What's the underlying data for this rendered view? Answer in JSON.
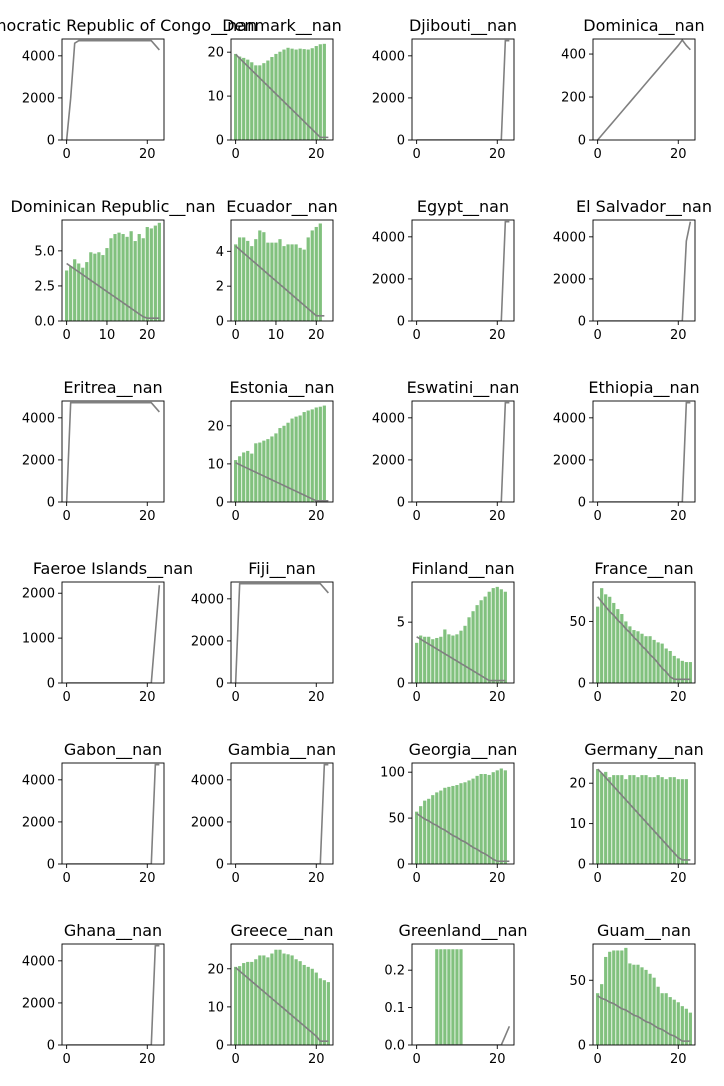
{
  "chart_data": [
    {
      "type": "bar+line",
      "title": "Democratic Republic of Congo__nan",
      "ylim": [
        0,
        4800
      ],
      "yticks": [
        0,
        2000,
        4000
      ],
      "xticks": [
        0,
        20
      ],
      "bars": [],
      "line": [
        0,
        1980,
        4600,
        4720,
        4720,
        4720,
        4720,
        4720,
        4720,
        4720,
        4720,
        4720,
        4720,
        4720,
        4720,
        4720,
        4720,
        4720,
        4720,
        4720,
        4720,
        4720,
        4500,
        4280
      ]
    },
    {
      "type": "bar+line",
      "title": "Denmark__nan",
      "ylim": [
        0,
        23
      ],
      "yticks": [
        0,
        10,
        20
      ],
      "xticks": [
        0,
        20
      ],
      "bars": [
        19.6,
        19.0,
        18.7,
        18.3,
        17.7,
        17.0,
        17.0,
        17.5,
        18.1,
        18.9,
        19.6,
        20.1,
        20.6,
        21.0,
        20.8,
        20.6,
        20.8,
        20.7,
        20.6,
        20.9,
        21.4,
        21.8,
        21.9
      ],
      "line": [
        19.5,
        18.6,
        17.7,
        16.8,
        15.9,
        15.0,
        14.1,
        13.2,
        12.3,
        11.4,
        10.5,
        9.6,
        8.7,
        7.8,
        6.9,
        6.0,
        5.1,
        4.2,
        3.3,
        2.4,
        1.5,
        0.6,
        0.6,
        0.6
      ]
    },
    {
      "type": "bar+line",
      "title": "Djibouti__nan",
      "ylim": [
        0,
        4800
      ],
      "yticks": [
        0,
        2000,
        4000
      ],
      "xticks": [
        0,
        20
      ],
      "bars": [],
      "line": [
        0,
        0,
        0,
        0,
        0,
        0,
        0,
        0,
        0,
        0,
        0,
        0,
        0,
        0,
        0,
        0,
        0,
        0,
        0,
        0,
        0,
        0,
        4720,
        4720
      ]
    },
    {
      "type": "bar+line",
      "title": "Dominica__nan",
      "ylim": [
        0,
        470
      ],
      "yticks": [
        0,
        200,
        400
      ],
      "xticks": [
        0,
        20
      ],
      "bars": [],
      "line": [
        0,
        22,
        44,
        66,
        88,
        110,
        132,
        154,
        176,
        198,
        220,
        242,
        264,
        286,
        308,
        330,
        352,
        374,
        396,
        418,
        440,
        465,
        440,
        420
      ]
    },
    {
      "type": "bar+line",
      "title": "Dominican Republic__nan",
      "ylim": [
        0,
        7.2
      ],
      "yticks": [
        0,
        2.5,
        5.0
      ],
      "ytick_labels": [
        "0.0",
        "2.5",
        "5.0"
      ],
      "xticks": [
        0,
        10,
        20
      ],
      "bars": [
        3.6,
        3.9,
        4.4,
        4.1,
        3.8,
        4.2,
        4.9,
        4.8,
        4.9,
        4.7,
        5.2,
        5.9,
        6.2,
        6.3,
        6.2,
        6.0,
        6.4,
        5.7,
        6.2,
        5.9,
        6.7,
        6.6,
        6.8,
        7.0
      ],
      "line": [
        4.1,
        3.9,
        3.7,
        3.5,
        3.3,
        3.1,
        2.9,
        2.7,
        2.5,
        2.3,
        2.1,
        1.9,
        1.7,
        1.5,
        1.3,
        1.1,
        0.9,
        0.7,
        0.5,
        0.3,
        0.2,
        0.2,
        0.2,
        0.2
      ]
    },
    {
      "type": "bar+line",
      "title": "Ecuador__nan",
      "ylim": [
        0,
        5.8
      ],
      "yticks": [
        0,
        2,
        4
      ],
      "xticks": [
        0,
        10,
        20
      ],
      "bars": [
        4.4,
        4.8,
        4.8,
        4.6,
        4.3,
        4.7,
        5.2,
        5.1,
        4.5,
        4.5,
        4.5,
        4.7,
        4.3,
        4.4,
        4.4,
        4.4,
        4.2,
        4.1,
        4.8,
        5.2,
        5.4,
        5.6
      ],
      "line": [
        4.3,
        4.1,
        3.9,
        3.7,
        3.5,
        3.3,
        3.1,
        2.9,
        2.7,
        2.5,
        2.3,
        2.1,
        1.9,
        1.7,
        1.5,
        1.3,
        1.1,
        0.9,
        0.7,
        0.5,
        0.3,
        0.3,
        0.3
      ]
    },
    {
      "type": "bar+line",
      "title": "Egypt__nan",
      "ylim": [
        0,
        4800
      ],
      "yticks": [
        0,
        2000,
        4000
      ],
      "xticks": [
        0,
        20
      ],
      "bars": [],
      "line": [
        0,
        0,
        0,
        0,
        0,
        0,
        0,
        0,
        0,
        0,
        0,
        0,
        0,
        0,
        0,
        0,
        0,
        0,
        0,
        0,
        0,
        0,
        4720,
        4720
      ]
    },
    {
      "type": "bar+line",
      "title": "El Salvador__nan",
      "ylim": [
        0,
        4800
      ],
      "yticks": [
        0,
        2000,
        4000
      ],
      "xticks": [
        0,
        20
      ],
      "bars": [],
      "line": [
        0,
        0,
        0,
        0,
        0,
        0,
        0,
        0,
        0,
        0,
        0,
        0,
        0,
        0,
        0,
        0,
        0,
        0,
        0,
        0,
        0,
        0,
        3800,
        4720
      ]
    },
    {
      "type": "bar+line",
      "title": "Eritrea__nan",
      "ylim": [
        0,
        4800
      ],
      "yticks": [
        0,
        2000,
        4000
      ],
      "xticks": [
        0,
        20
      ],
      "bars": [],
      "line": [
        0,
        4720,
        4720,
        4720,
        4720,
        4720,
        4720,
        4720,
        4720,
        4720,
        4720,
        4720,
        4720,
        4720,
        4720,
        4720,
        4720,
        4720,
        4720,
        4720,
        4720,
        4720,
        4500,
        4280
      ]
    },
    {
      "type": "bar+line",
      "title": "Estonia__nan",
      "ylim": [
        0,
        26.5
      ],
      "yticks": [
        0,
        10,
        20
      ],
      "xticks": [
        0,
        20
      ],
      "bars": [
        11.0,
        12.0,
        13.0,
        13.4,
        12.7,
        15.4,
        15.6,
        16.1,
        16.5,
        17.2,
        18.0,
        19.4,
        20.0,
        20.8,
        21.9,
        22.4,
        22.7,
        23.6,
        24.0,
        24.3,
        24.8,
        25.0,
        25.3
      ],
      "line": [
        10.3,
        9.8,
        9.3,
        8.8,
        8.3,
        7.8,
        7.3,
        6.8,
        6.3,
        5.8,
        5.3,
        4.8,
        4.3,
        3.8,
        3.3,
        2.8,
        2.3,
        1.8,
        1.3,
        0.8,
        0.3,
        0.3,
        0.3,
        0.3
      ]
    },
    {
      "type": "bar+line",
      "title": "Eswatini__nan",
      "ylim": [
        0,
        4800
      ],
      "yticks": [
        0,
        2000,
        4000
      ],
      "xticks": [
        0,
        20
      ],
      "bars": [],
      "line": [
        0,
        0,
        0,
        0,
        0,
        0,
        0,
        0,
        0,
        0,
        0,
        0,
        0,
        0,
        0,
        0,
        0,
        0,
        0,
        0,
        0,
        0,
        4720,
        4720
      ]
    },
    {
      "type": "bar+line",
      "title": "Ethiopia__nan",
      "ylim": [
        0,
        4800
      ],
      "yticks": [
        0,
        2000,
        4000
      ],
      "xticks": [
        0,
        20
      ],
      "bars": [],
      "line": [
        0,
        0,
        0,
        0,
        0,
        0,
        0,
        0,
        0,
        0,
        0,
        0,
        0,
        0,
        0,
        0,
        0,
        0,
        0,
        0,
        0,
        0,
        4720,
        4720
      ]
    },
    {
      "type": "bar+line",
      "title": "Faeroe Islands__nan",
      "ylim": [
        0,
        2250
      ],
      "yticks": [
        0,
        1000,
        2000
      ],
      "xticks": [
        0,
        20
      ],
      "bars": [],
      "line": [
        0,
        0,
        0,
        0,
        0,
        0,
        0,
        0,
        0,
        0,
        0,
        0,
        0,
        0,
        0,
        0,
        0,
        0,
        0,
        0,
        0,
        0,
        1100,
        2180
      ]
    },
    {
      "type": "bar+line",
      "title": "Fiji__nan",
      "ylim": [
        0,
        4800
      ],
      "yticks": [
        0,
        2000,
        4000
      ],
      "xticks": [
        0,
        20
      ],
      "bars": [],
      "line": [
        0,
        4720,
        4720,
        4720,
        4720,
        4720,
        4720,
        4720,
        4720,
        4720,
        4720,
        4720,
        4720,
        4720,
        4720,
        4720,
        4720,
        4720,
        4720,
        4720,
        4720,
        4720,
        4500,
        4280
      ]
    },
    {
      "type": "bar+line",
      "title": "Finland__nan",
      "ylim": [
        0,
        8.3
      ],
      "yticks": [
        0,
        5
      ],
      "xticks": [
        0,
        20
      ],
      "bars": [
        3.3,
        3.9,
        3.8,
        3.8,
        3.6,
        3.7,
        3.8,
        4.4,
        4.0,
        3.9,
        4.0,
        4.3,
        4.7,
        5.4,
        5.9,
        6.4,
        6.8,
        7.1,
        7.5,
        7.8,
        7.9,
        7.7,
        7.5
      ],
      "line": [
        3.8,
        3.6,
        3.4,
        3.2,
        3.0,
        2.8,
        2.6,
        2.4,
        2.2,
        2.0,
        1.8,
        1.6,
        1.4,
        1.2,
        1.0,
        0.8,
        0.6,
        0.4,
        0.2,
        0.2,
        0.2,
        0.2,
        0.2
      ]
    },
    {
      "type": "bar+line",
      "title": "France__nan",
      "ylim": [
        0,
        82
      ],
      "yticks": [
        0,
        50
      ],
      "xticks": [
        0,
        20
      ],
      "bars": [
        62,
        77,
        72,
        70,
        65,
        60,
        56,
        50,
        46,
        43,
        42,
        40,
        38,
        38,
        35,
        33,
        32,
        28,
        26,
        22,
        20,
        18,
        17,
        17
      ],
      "line": [
        70,
        66,
        62,
        58,
        55,
        51,
        48,
        44,
        41,
        37,
        34,
        30,
        27,
        23,
        20,
        16,
        12,
        9,
        5,
        3,
        3,
        3,
        3,
        3
      ]
    },
    {
      "type": "bar+line",
      "title": "Gabon__nan",
      "ylim": [
        0,
        4800
      ],
      "yticks": [
        0,
        2000,
        4000
      ],
      "xticks": [
        0,
        20
      ],
      "bars": [],
      "line": [
        0,
        0,
        0,
        0,
        0,
        0,
        0,
        0,
        0,
        0,
        0,
        0,
        0,
        0,
        0,
        0,
        0,
        0,
        0,
        0,
        0,
        0,
        4720,
        4720
      ]
    },
    {
      "type": "bar+line",
      "title": "Gambia__nan",
      "ylim": [
        0,
        4800
      ],
      "yticks": [
        0,
        2000,
        4000
      ],
      "xticks": [
        0,
        20
      ],
      "bars": [],
      "line": [
        0,
        0,
        0,
        0,
        0,
        0,
        0,
        0,
        0,
        0,
        0,
        0,
        0,
        0,
        0,
        0,
        0,
        0,
        0,
        0,
        0,
        0,
        4720,
        4720
      ]
    },
    {
      "type": "bar+line",
      "title": "Georgia__nan",
      "ylim": [
        0,
        110
      ],
      "yticks": [
        0,
        50,
        100
      ],
      "xticks": [
        0,
        20
      ],
      "bars": [
        57,
        63,
        69,
        71,
        75,
        78,
        80,
        83,
        84,
        85,
        86,
        88,
        89,
        91,
        93,
        96,
        98,
        98,
        97,
        100,
        102,
        104,
        102
      ],
      "line": [
        55,
        52,
        49,
        47,
        44,
        42,
        39,
        37,
        34,
        31,
        29,
        26,
        24,
        21,
        18,
        16,
        13,
        11,
        8,
        5,
        3,
        3,
        3,
        3
      ]
    },
    {
      "type": "bar+line",
      "title": "Germany__nan",
      "ylim": [
        0,
        25
      ],
      "yticks": [
        0,
        10,
        20
      ],
      "xticks": [
        0,
        20
      ],
      "bars": [
        23.5,
        22.5,
        22.8,
        21.5,
        22.0,
        22.0,
        22.0,
        21.0,
        22.0,
        22.0,
        21.5,
        22.0,
        22.0,
        21.5,
        21.5,
        22.0,
        21.5,
        21.0,
        21.5,
        21.5,
        21.0,
        21.0,
        21.0
      ],
      "line": [
        23.5,
        22.5,
        21.4,
        20.3,
        19.2,
        18.1,
        17.0,
        15.9,
        14.8,
        13.7,
        12.6,
        11.5,
        10.4,
        9.3,
        8.2,
        7.1,
        6.0,
        4.9,
        3.8,
        2.7,
        1.6,
        1.0,
        1.0,
        1.0
      ]
    },
    {
      "type": "bar+line",
      "title": "Ghana__nan",
      "ylim": [
        0,
        4800
      ],
      "yticks": [
        0,
        2000,
        4000
      ],
      "xticks": [
        0,
        20
      ],
      "bars": [],
      "line": [
        0,
        0,
        0,
        0,
        0,
        0,
        0,
        0,
        0,
        0,
        0,
        0,
        0,
        0,
        0,
        0,
        0,
        0,
        0,
        0,
        0,
        0,
        4720,
        4720
      ]
    },
    {
      "type": "bar+line",
      "title": "Greece__nan",
      "ylim": [
        0,
        26.5
      ],
      "yticks": [
        0,
        10,
        20
      ],
      "xticks": [
        0,
        20
      ],
      "bars": [
        20.5,
        20.7,
        21.5,
        21.8,
        21.8,
        22.5,
        23.5,
        23.5,
        23.0,
        24.0,
        25.0,
        25.0,
        24.0,
        23.8,
        23.5,
        22.5,
        22.0,
        21.0,
        20.5,
        20.0,
        19.0,
        17.5,
        17.0,
        16.5
      ],
      "line": [
        20.3,
        19.4,
        18.5,
        17.6,
        16.7,
        15.8,
        14.9,
        14.0,
        13.1,
        12.2,
        11.3,
        10.4,
        9.5,
        8.6,
        7.7,
        6.8,
        5.9,
        5.0,
        4.1,
        3.2,
        2.3,
        1.0,
        1.0,
        1.0
      ]
    },
    {
      "type": "bar+line",
      "title": "Greenland__nan",
      "ylim": [
        0,
        0.27
      ],
      "yticks": [
        0,
        0.1,
        0.2
      ],
      "ytick_labels": [
        "0.0",
        "0.1",
        "0.2"
      ],
      "xticks": [
        0,
        20
      ],
      "bars": [
        0,
        0,
        0,
        0,
        0,
        0.256,
        0.256,
        0.256,
        0.256,
        0.256,
        0.256,
        0.256,
        0,
        0,
        0,
        0,
        0,
        0,
        0,
        0,
        0,
        0,
        0,
        0
      ],
      "line": [
        0,
        0,
        0,
        0,
        0,
        0,
        0,
        0,
        0,
        0,
        0,
        0,
        0,
        0,
        0,
        0,
        0,
        0,
        0,
        0,
        0,
        0,
        0.025,
        0.05
      ]
    },
    {
      "type": "bar+line",
      "title": "Guam__nan",
      "ylim": [
        0,
        78
      ],
      "yticks": [
        0,
        50
      ],
      "xticks": [
        0,
        20
      ],
      "bars": [
        40,
        47,
        68,
        72,
        73,
        73,
        73,
        75,
        63,
        62,
        62,
        60,
        58,
        55,
        52,
        45,
        40,
        40,
        37,
        35,
        33,
        30,
        28,
        25
      ],
      "line": [
        38,
        36,
        35,
        33,
        32,
        30,
        28,
        27,
        25,
        23,
        22,
        20,
        18,
        17,
        15,
        13,
        12,
        10,
        8,
        7,
        5,
        3,
        3,
        3
      ]
    }
  ]
}
